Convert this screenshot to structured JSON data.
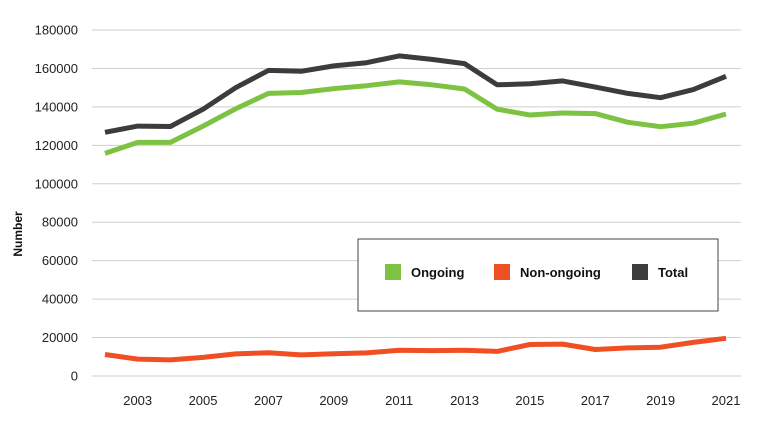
{
  "chart_data": {
    "type": "line",
    "ylabel": "Number",
    "ylim": [
      0,
      180000
    ],
    "yticks": [
      0,
      20000,
      40000,
      60000,
      80000,
      100000,
      120000,
      140000,
      160000,
      180000
    ],
    "ytick_labels": [
      "0",
      "20000",
      "40000",
      "60000",
      "80000",
      "100000",
      "120000",
      "140000",
      "160000",
      "180000"
    ],
    "x": [
      2002,
      2003,
      2004,
      2005,
      2006,
      2007,
      2008,
      2009,
      2010,
      2011,
      2012,
      2013,
      2014,
      2015,
      2016,
      2017,
      2018,
      2019,
      2020,
      2021
    ],
    "xticks": [
      2003,
      2005,
      2007,
      2009,
      2011,
      2013,
      2015,
      2017,
      2019,
      2021
    ],
    "xtick_labels": [
      "2003",
      "2005",
      "2007",
      "2009",
      "2011",
      "2013",
      "2015",
      "2017",
      "2019",
      "2021"
    ],
    "grid": true,
    "legend_position": "center-right",
    "series": [
      {
        "name": "Ongoing",
        "color": "#7dc242",
        "values": [
          115800,
          121500,
          121500,
          130000,
          139000,
          147000,
          147500,
          149500,
          151000,
          153000,
          151500,
          149300,
          138800,
          135800,
          136800,
          136500,
          132000,
          129700,
          131500,
          136300
        ]
      },
      {
        "name": "Non-ongoing",
        "color": "#f04e23",
        "values": [
          11200,
          8800,
          8400,
          9700,
          11500,
          12100,
          11000,
          11600,
          12000,
          13400,
          13200,
          13400,
          12800,
          16400,
          16600,
          13800,
          14600,
          15000,
          17500,
          19600
        ]
      },
      {
        "name": "Total",
        "color": "#3c3c3c",
        "values": [
          126800,
          130000,
          129800,
          138800,
          150000,
          159000,
          158500,
          161300,
          163000,
          166500,
          164700,
          162500,
          151500,
          152000,
          153500,
          150300,
          147000,
          144800,
          149000,
          155900
        ]
      }
    ]
  }
}
